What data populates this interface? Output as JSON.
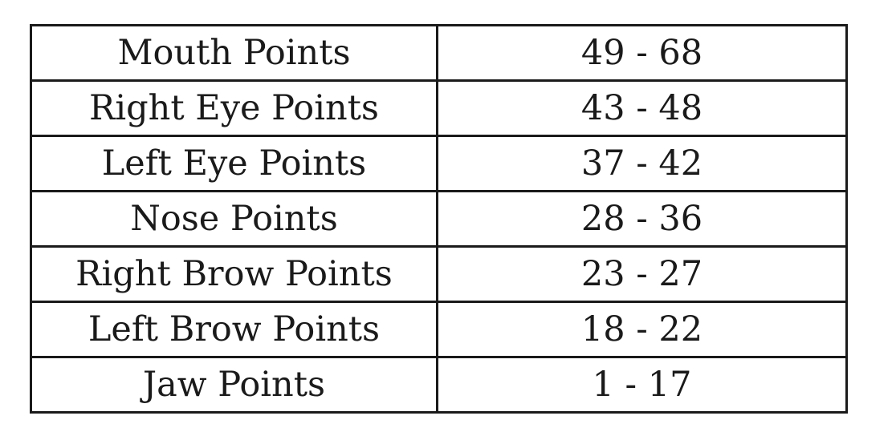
{
  "table": {
    "rows": [
      {
        "region": "Mouth Points",
        "range": "49 - 68"
      },
      {
        "region": "Right Eye Points",
        "range": "43 - 48"
      },
      {
        "region": "Left Eye Points",
        "range": "37 - 42"
      },
      {
        "region": "Nose Points",
        "range": "28 - 36"
      },
      {
        "region": "Right Brow Points",
        "range": "23 - 27"
      },
      {
        "region": "Left Brow Points",
        "range": "18 - 22"
      },
      {
        "region": "Jaw Points",
        "range": "1 - 17"
      }
    ]
  }
}
